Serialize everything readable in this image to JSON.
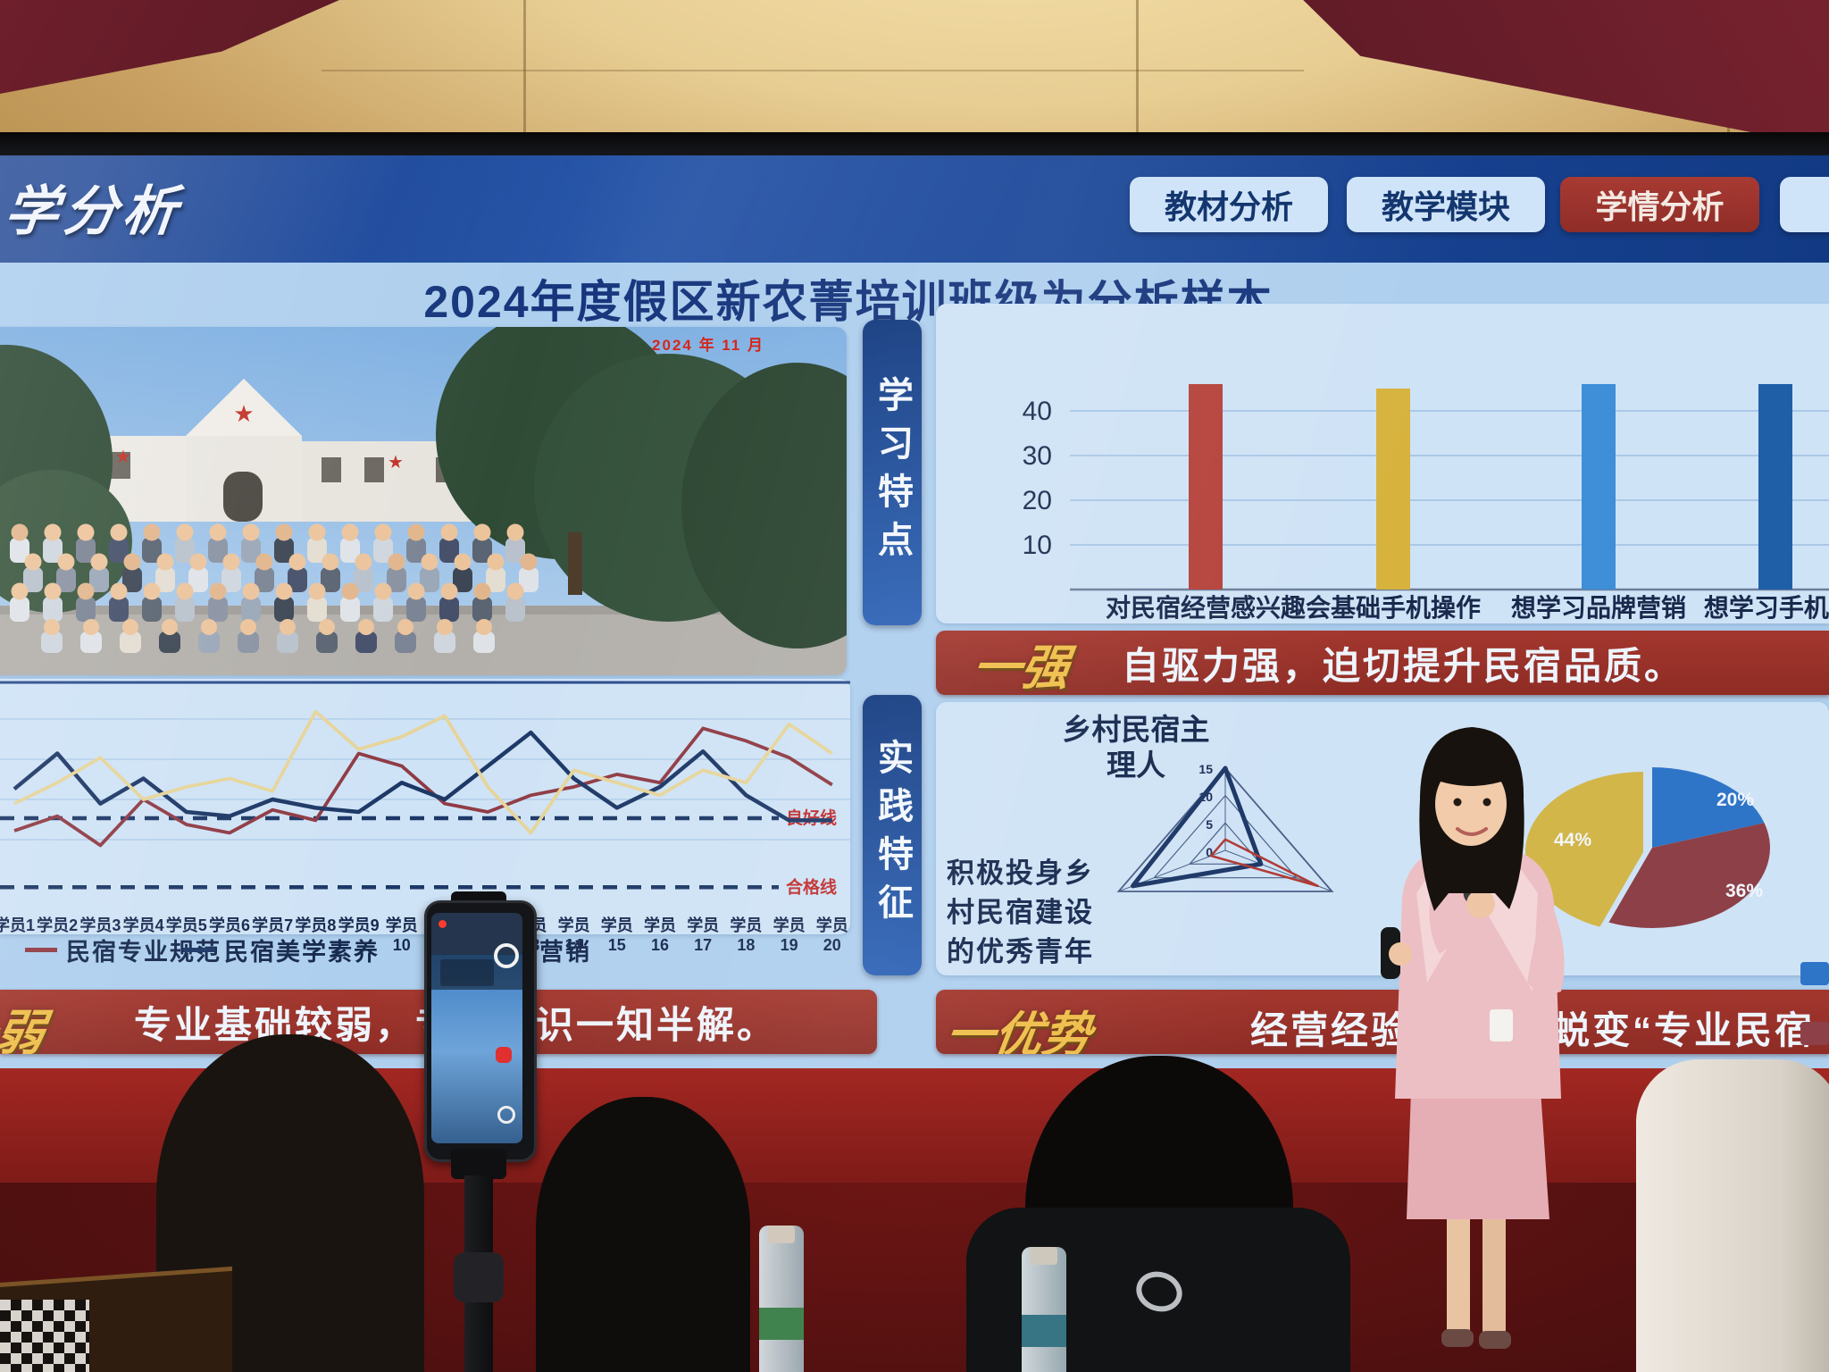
{
  "screen": {
    "header": {
      "title_partial": "学分析",
      "tabs": [
        {
          "label": "教材分析",
          "active": false
        },
        {
          "label": "教学模块",
          "active": false
        },
        {
          "label": "学情分析",
          "active": true
        },
        {
          "label": "",
          "active": false
        }
      ]
    },
    "slide_title": "2024年度假区新农菁培训班级为分析样本",
    "photo_caption": "2024 年 11 月",
    "learning": {
      "tab_label": "学习特点",
      "strong_tag": "一强",
      "strong_text": "自驱力强，迫切提升民宿品质。"
    },
    "practice": {
      "tab_label": "实践特征",
      "radar_title": [
        "乡村民宿主",
        "理人"
      ],
      "side_text": [
        "积极投身乡",
        "村民宿建设",
        "的优秀青年"
      ],
      "advantage_tag": "一优势",
      "advantage_text_mid": "经营经验",
      "advantage_text_right": "蜕变“专业民宿"
    },
    "weak_banner": {
      "tag": "一弱",
      "text": "专业基础较弱，专业知识一知半解。"
    }
  },
  "chart_data": [
    {
      "type": "bar",
      "title": "学习特点",
      "categories": [
        "对民宿经营感兴趣",
        "会基础手机操作",
        "想学习品牌营销",
        "想学习手机A"
      ],
      "values": [
        46,
        45,
        46,
        46
      ],
      "colors": [
        "#b5433c",
        "#d7b33e",
        "#3e8ed8",
        "#1f5fa8"
      ],
      "yticks": [
        10,
        20,
        30,
        40
      ],
      "ylim": [
        0,
        50
      ],
      "grid": true
    },
    {
      "type": "line",
      "x": [
        "学员1",
        "学员2",
        "学员3",
        "学员4",
        "学员5",
        "学员6",
        "学员7",
        "学员8",
        "学员9",
        "学员10",
        "学员11",
        "学员12",
        "学员13",
        "学员14",
        "学员15",
        "学员16",
        "学员17",
        "学员18",
        "学员19",
        "学员20"
      ],
      "series": [
        {
          "name": "民宿专业规范",
          "color": "#8f3a44",
          "values": [
            35,
            42,
            28,
            50,
            38,
            34,
            45,
            40,
            72,
            66,
            48,
            44,
            52,
            56,
            62,
            58,
            84,
            78,
            70,
            57
          ]
        },
        {
          "name": "民宿美学素养",
          "color": "#1c3766",
          "values": [
            55,
            72,
            48,
            60,
            44,
            42,
            50,
            46,
            44,
            58,
            50,
            66,
            82,
            60,
            46,
            56,
            73,
            52,
            40,
            40
          ]
        },
        {
          "name": "营销",
          "color": "#e6d49a",
          "values": [
            48,
            58,
            70,
            50,
            56,
            60,
            54,
            92,
            74,
            80,
            90,
            56,
            34,
            64,
            58,
            52,
            64,
            58,
            86,
            72
          ]
        }
      ],
      "thresholds": [
        {
          "label": "良好线",
          "value": 41
        },
        {
          "label": "合格线",
          "value": 8
        }
      ],
      "ylim": [
        0,
        100
      ],
      "legend_position": "bottom"
    },
    {
      "type": "radar",
      "title": "乡村民宿主理人",
      "ticks": [
        15,
        10,
        5,
        0
      ],
      "max": 15,
      "axes_count": 3,
      "series": [
        {
          "name": "",
          "color": "#1c3766",
          "values": [
            15,
            5,
            13
          ]
        },
        {
          "name": "",
          "color": "#b03a34",
          "values": [
            2,
            13,
            2
          ]
        }
      ]
    },
    {
      "type": "pie",
      "slices": [
        {
          "label": "20%",
          "value": 20,
          "color": "#2e75c8"
        },
        {
          "label": "36%",
          "value": 36,
          "color": "#8d4048"
        },
        {
          "label": "44%",
          "value": 44,
          "color": "#d2b64a"
        }
      ]
    }
  ]
}
